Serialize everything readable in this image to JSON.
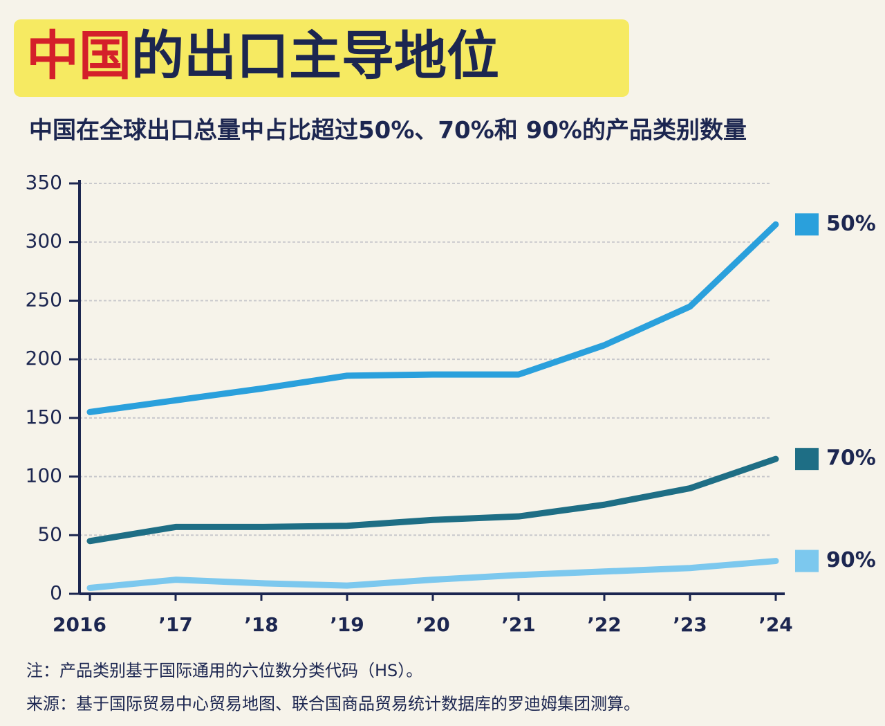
{
  "chart_data": {
    "type": "line",
    "title": [
      {
        "text": "中国",
        "color": "#d4202a"
      },
      {
        "text": "的出口主导地位",
        "color": "#1c2650"
      }
    ],
    "subtitle": "中国在全球出口总量中占比超过50%、70%和 90%的产品类别数量",
    "categories": [
      "2016",
      "’17",
      "’18",
      "’19",
      "’20",
      "’21",
      "’22",
      "’23",
      "’24"
    ],
    "series": [
      {
        "name": "50%",
        "color": "#2aa0dc",
        "values": [
          155,
          165,
          175,
          186,
          187,
          187,
          212,
          245,
          315
        ]
      },
      {
        "name": "70%",
        "color": "#1e6e85",
        "values": [
          45,
          57,
          57,
          58,
          63,
          66,
          76,
          90,
          115
        ]
      },
      {
        "name": "90%",
        "color": "#7cc8ee",
        "values": [
          5,
          12,
          9,
          7,
          12,
          16,
          19,
          22,
          28
        ]
      }
    ],
    "ylim": [
      0,
      350
    ],
    "yticks": [
      0,
      50,
      100,
      150,
      200,
      250,
      300,
      350
    ],
    "grid": true,
    "notes": [
      "注：产品类别基于国际通用的六位数分类代码（HS）。",
      "来源：基于国际贸易中心贸易地图、联合国商品贸易统计数据库的罗迪姆集团测算。"
    ]
  }
}
